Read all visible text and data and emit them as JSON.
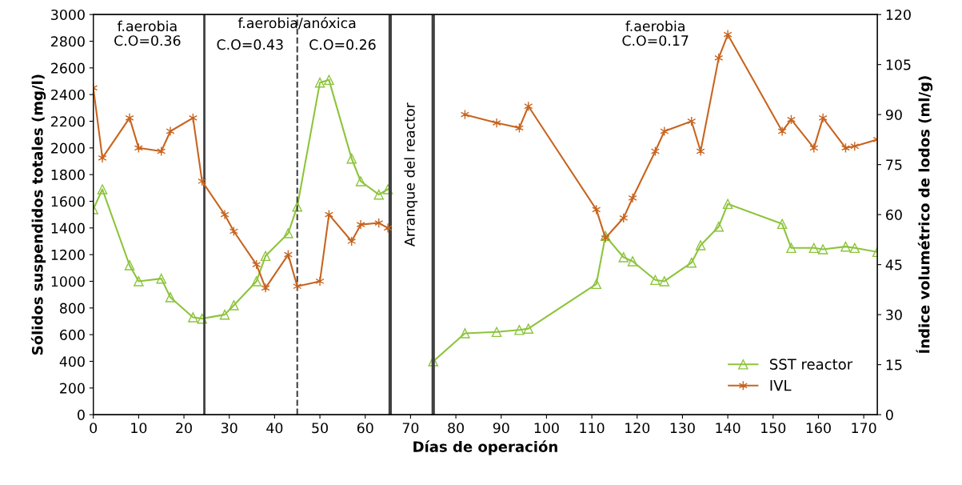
{
  "chart_data": {
    "type": "line",
    "xlabel": "Días de operación",
    "ylabel": "Sólidos suspendidos totales (mg/l)",
    "y2label": "Índice volumétrico de lodos (ml/g)",
    "xlim": [
      0,
      173
    ],
    "xticks": [
      0,
      10,
      20,
      30,
      40,
      50,
      60,
      70,
      80,
      90,
      100,
      110,
      120,
      130,
      140,
      150,
      160,
      170
    ],
    "ylim": [
      0,
      3000
    ],
    "yticks": [
      0,
      200,
      400,
      600,
      800,
      1000,
      1200,
      1400,
      1600,
      1800,
      2000,
      2200,
      2400,
      2600,
      2800,
      3000
    ],
    "y2lim": [
      0,
      120
    ],
    "y2ticks": [
      0,
      15,
      30,
      45,
      60,
      75,
      90,
      105,
      120
    ],
    "grid": false,
    "legend": "bottom right",
    "line_style": "solid",
    "series": [
      {
        "name": "SST reactor",
        "color": "#8cc43c",
        "marker": "triangle",
        "axis": "y",
        "x": [
          0,
          2,
          8,
          10,
          15,
          17,
          22,
          24,
          29,
          31,
          36,
          38,
          43,
          45,
          50,
          52,
          57,
          59,
          63,
          65,
          70,
          75,
          82,
          89,
          94,
          96,
          111,
          113,
          117,
          119,
          124,
          126,
          132,
          134,
          138,
          140,
          152,
          154,
          159,
          161,
          166,
          168,
          173
        ],
        "values": [
          1540,
          1690,
          1120,
          1000,
          1020,
          880,
          730,
          720,
          750,
          820,
          1000,
          1190,
          1360,
          1560,
          2490,
          2510,
          1920,
          1750,
          1650,
          1690,
          null,
          400,
          610,
          620,
          635,
          645,
          980,
          1340,
          1180,
          1150,
          1010,
          1000,
          1140,
          1270,
          1410,
          1580,
          1430,
          1250,
          1250,
          1240,
          1260,
          1250,
          1220
        ]
      },
      {
        "name": "IVL",
        "color": "#c8641e",
        "marker": "cross",
        "axis": "y2",
        "x": [
          0,
          2,
          8,
          10,
          15,
          17,
          22,
          24,
          29,
          31,
          36,
          38,
          43,
          45,
          50,
          52,
          57,
          59,
          63,
          65,
          70,
          82,
          89,
          94,
          96,
          111,
          113,
          117,
          119,
          124,
          126,
          132,
          134,
          138,
          140,
          152,
          154,
          159,
          161,
          166,
          168,
          173
        ],
        "values": [
          98,
          77,
          89,
          80,
          79,
          85,
          89,
          70,
          60,
          55,
          45,
          38,
          48,
          38.5,
          40,
          60,
          52,
          57,
          57.5,
          56,
          null,
          90,
          87.5,
          86,
          92.5,
          61.5,
          53,
          59,
          65,
          79,
          85,
          88,
          79,
          107,
          114,
          85,
          88.5,
          80,
          89,
          80,
          80.5,
          82.5
        ]
      }
    ],
    "ref_lines": [
      {
        "axis": "x",
        "value": 24.5,
        "color": "#404040",
        "line_style": "solid"
      },
      {
        "axis": "x",
        "value": 45,
        "color": "#404040",
        "line_style": "dashed"
      },
      {
        "axis": "x",
        "value": 65.5,
        "color": "#404040",
        "line_style": "solid"
      },
      {
        "axis": "x",
        "value": 75,
        "color": "#404040",
        "line_style": "solid"
      }
    ],
    "annotations": [
      "f.aerobia\nC.O=0.36",
      "f.aerobia/anóxica",
      "C.O=0.43",
      "C.O=0.26",
      "Arranque del reactor",
      "f.aerobia\nC.O=0.17"
    ]
  }
}
